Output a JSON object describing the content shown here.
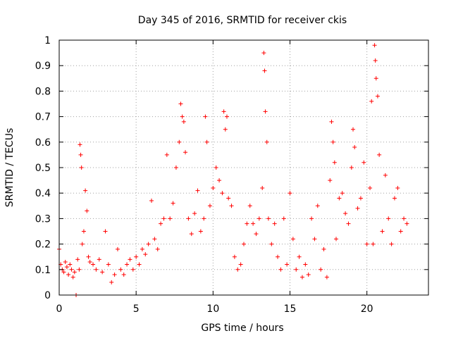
{
  "chart_data": {
    "type": "scatter",
    "title": "Day 345 of 2016, SRMTID for receiver ckis",
    "xlabel": "GPS time / hours",
    "ylabel": "SRMTID / TECUs",
    "xlim": [
      0,
      24
    ],
    "ylim": [
      0,
      1
    ],
    "grid": true,
    "x_ticks": [
      0,
      5,
      10,
      15,
      20
    ],
    "x_tick_labels": [
      "0",
      "5",
      "10",
      "15",
      "20"
    ],
    "y_ticks": [
      0,
      0.1,
      0.2,
      0.3,
      0.4,
      0.5,
      0.6,
      0.7,
      0.8,
      0.9,
      1
    ],
    "y_tick_labels": [
      "0",
      "0.1",
      "0.2",
      "0.3",
      "0.4",
      "0.5",
      "0.6",
      "0.7",
      "0.8",
      "0.9",
      "1"
    ],
    "marker": "+",
    "color": "#ff0000",
    "series": [
      {
        "name": "SRMTID",
        "x": [
          0.0,
          0.1,
          0.2,
          0.3,
          0.4,
          0.5,
          0.6,
          0.7,
          0.8,
          0.9,
          1.0,
          1.1,
          1.2,
          1.3,
          1.35,
          1.4,
          1.45,
          1.5,
          1.6,
          1.7,
          1.8,
          1.9,
          2.0,
          2.2,
          2.4,
          2.6,
          2.8,
          3.0,
          3.2,
          3.4,
          3.6,
          3.8,
          4.0,
          4.2,
          4.4,
          4.6,
          4.8,
          5.0,
          5.2,
          5.4,
          5.6,
          5.8,
          6.0,
          6.2,
          6.4,
          6.6,
          6.8,
          7.0,
          7.2,
          7.4,
          7.6,
          7.8,
          7.9,
          8.0,
          8.1,
          8.2,
          8.4,
          8.6,
          8.8,
          9.0,
          9.2,
          9.4,
          9.5,
          9.6,
          9.8,
          10.0,
          10.2,
          10.4,
          10.6,
          10.7,
          10.8,
          10.9,
          11.0,
          11.2,
          11.4,
          11.6,
          11.8,
          12.0,
          12.2,
          12.4,
          12.6,
          12.8,
          13.0,
          13.2,
          13.3,
          13.35,
          13.4,
          13.5,
          13.6,
          13.8,
          14.0,
          14.2,
          14.4,
          14.6,
          14.8,
          15.0,
          15.2,
          15.4,
          15.6,
          15.8,
          16.0,
          16.2,
          16.4,
          16.6,
          16.8,
          17.0,
          17.2,
          17.4,
          17.6,
          17.7,
          17.8,
          17.9,
          18.0,
          18.2,
          18.4,
          18.6,
          18.8,
          19.0,
          19.1,
          19.2,
          19.4,
          19.6,
          19.8,
          20.0,
          20.2,
          20.3,
          20.4,
          20.5,
          20.55,
          20.6,
          20.7,
          20.8,
          21.0,
          21.2,
          21.4,
          21.6,
          21.8,
          22.0,
          22.2,
          22.4,
          22.6
        ],
        "y": [
          0.18,
          0.12,
          0.1,
          0.09,
          0.13,
          0.11,
          0.08,
          0.12,
          0.1,
          0.07,
          0.09,
          0.0,
          0.14,
          0.1,
          0.59,
          0.55,
          0.5,
          0.2,
          0.25,
          0.41,
          0.33,
          0.15,
          0.13,
          0.12,
          0.1,
          0.14,
          0.09,
          0.25,
          0.12,
          0.05,
          0.08,
          0.18,
          0.1,
          0.08,
          0.12,
          0.14,
          0.1,
          0.15,
          0.12,
          0.18,
          0.16,
          0.2,
          0.37,
          0.22,
          0.18,
          0.28,
          0.3,
          0.55,
          0.3,
          0.36,
          0.5,
          0.6,
          0.75,
          0.7,
          0.68,
          0.56,
          0.3,
          0.24,
          0.32,
          0.41,
          0.25,
          0.3,
          0.7,
          0.6,
          0.35,
          0.42,
          0.5,
          0.45,
          0.4,
          0.72,
          0.65,
          0.7,
          0.38,
          0.35,
          0.15,
          0.1,
          0.12,
          0.2,
          0.28,
          0.35,
          0.28,
          0.24,
          0.3,
          0.42,
          0.95,
          0.88,
          0.72,
          0.6,
          0.3,
          0.2,
          0.28,
          0.15,
          0.1,
          0.3,
          0.12,
          0.4,
          0.22,
          0.1,
          0.15,
          0.07,
          0.12,
          0.08,
          0.3,
          0.22,
          0.35,
          0.1,
          0.18,
          0.07,
          0.45,
          0.68,
          0.6,
          0.52,
          0.22,
          0.38,
          0.4,
          0.32,
          0.28,
          0.5,
          0.65,
          0.58,
          0.34,
          0.38,
          0.52,
          0.2,
          0.42,
          0.76,
          0.2,
          0.98,
          0.92,
          0.85,
          0.78,
          0.55,
          0.25,
          0.47,
          0.3,
          0.2,
          0.38,
          0.42,
          0.25,
          0.3,
          0.28
        ]
      }
    ]
  }
}
